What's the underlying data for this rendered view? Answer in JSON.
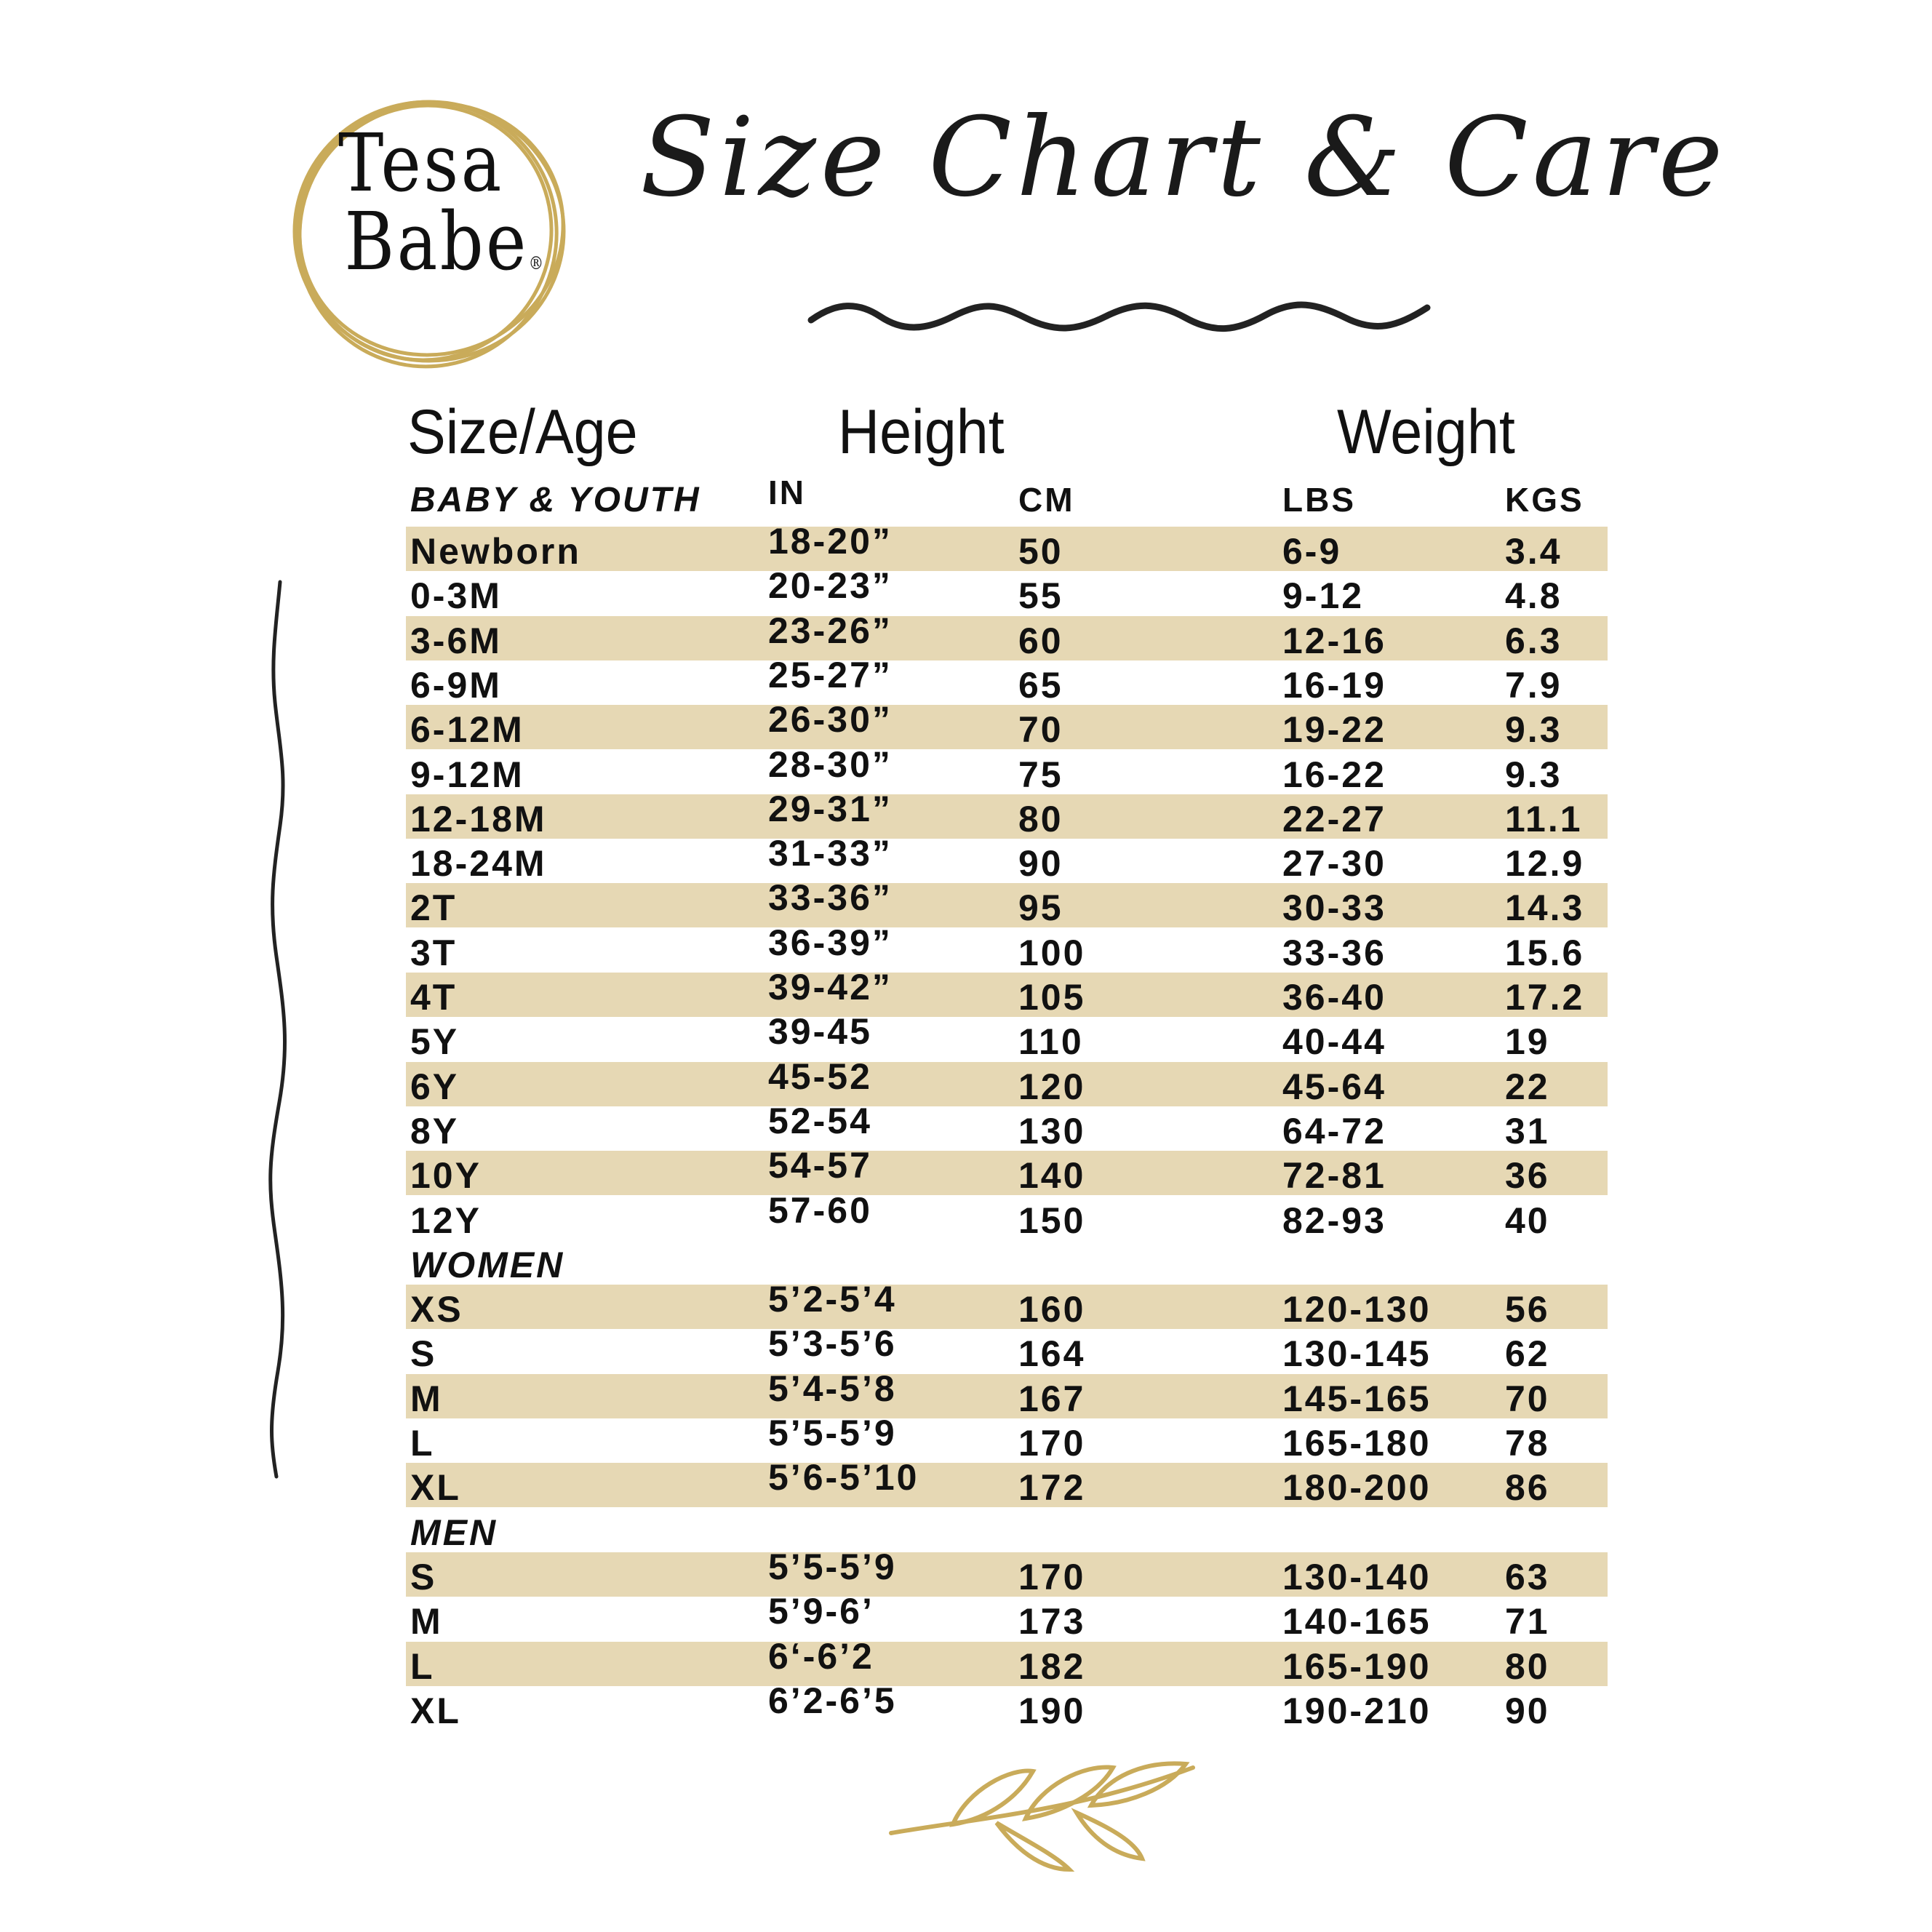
{
  "brand": {
    "logo_text_line1": "Tesa",
    "logo_text_line2": "Babe",
    "registered": "®"
  },
  "title": "Size Chart & Care",
  "colors": {
    "band": "#e6d8b4",
    "gold": "#c9ab5a",
    "ink": "#111111"
  },
  "headers": {
    "size_age": "Size/Age",
    "height": "Height",
    "weight": "Weight"
  },
  "subheaders": {
    "section": "BABY & YOUTH",
    "in": "IN",
    "cm": "CM",
    "lbs": "LBS",
    "kgs": "KGS"
  },
  "sections": {
    "women": "WOMEN",
    "men": "MEN"
  },
  "baby_youth": [
    [
      "Newborn",
      "18-20”",
      "50",
      "6-9",
      "3.4"
    ],
    [
      "0-3M",
      "20-23”",
      "55",
      "9-12",
      "4.8"
    ],
    [
      "3-6M",
      "23-26”",
      "60",
      "12-16",
      "6.3"
    ],
    [
      "6-9M",
      "25-27”",
      "65",
      "16-19",
      "7.9"
    ],
    [
      "6-12M",
      "26-30”",
      "70",
      "19-22",
      "9.3"
    ],
    [
      "9-12M",
      "28-30”",
      "75",
      "16-22",
      "9.3"
    ],
    [
      "12-18M",
      "29-31”",
      "80",
      "22-27",
      "11.1"
    ],
    [
      "18-24M",
      "31-33”",
      "90",
      "27-30",
      "12.9"
    ],
    [
      "2T",
      "33-36”",
      "95",
      "30-33",
      "14.3"
    ],
    [
      "3T",
      "36-39”",
      "100",
      "33-36",
      "15.6"
    ],
    [
      "4T",
      "39-42”",
      "105",
      "36-40",
      "17.2"
    ],
    [
      "5Y",
      "39-45",
      "110",
      "40-44",
      "19"
    ],
    [
      "6Y",
      "45-52",
      "120",
      "45-64",
      "22"
    ],
    [
      "8Y",
      "52-54",
      "130",
      "64-72",
      "31"
    ],
    [
      "10Y",
      "54-57",
      "140",
      "72-81",
      "36"
    ],
    [
      "12Y",
      "57-60",
      "150",
      "82-93",
      "40"
    ]
  ],
  "women": [
    [
      "XS",
      "5’2-5’4",
      "160",
      "120-130",
      "56"
    ],
    [
      "S",
      "5’3-5’6",
      "164",
      "130-145",
      "62"
    ],
    [
      "M",
      "5’4-5’8",
      "167",
      "145-165",
      "70"
    ],
    [
      "L",
      "5’5-5’9",
      "170",
      "165-180",
      "78"
    ],
    [
      "XL",
      "5’6-5’10",
      "172",
      "180-200",
      "86"
    ]
  ],
  "men": [
    [
      "S",
      "5’5-5’9",
      "170",
      "130-140",
      "63"
    ],
    [
      "M",
      "5’9-6’",
      "173",
      "140-165",
      "71"
    ],
    [
      "L",
      "6‘-6’2",
      "182",
      "165-190",
      "80"
    ],
    [
      "XL",
      "6’2-6’5",
      "190",
      "190-210",
      "90"
    ]
  ]
}
